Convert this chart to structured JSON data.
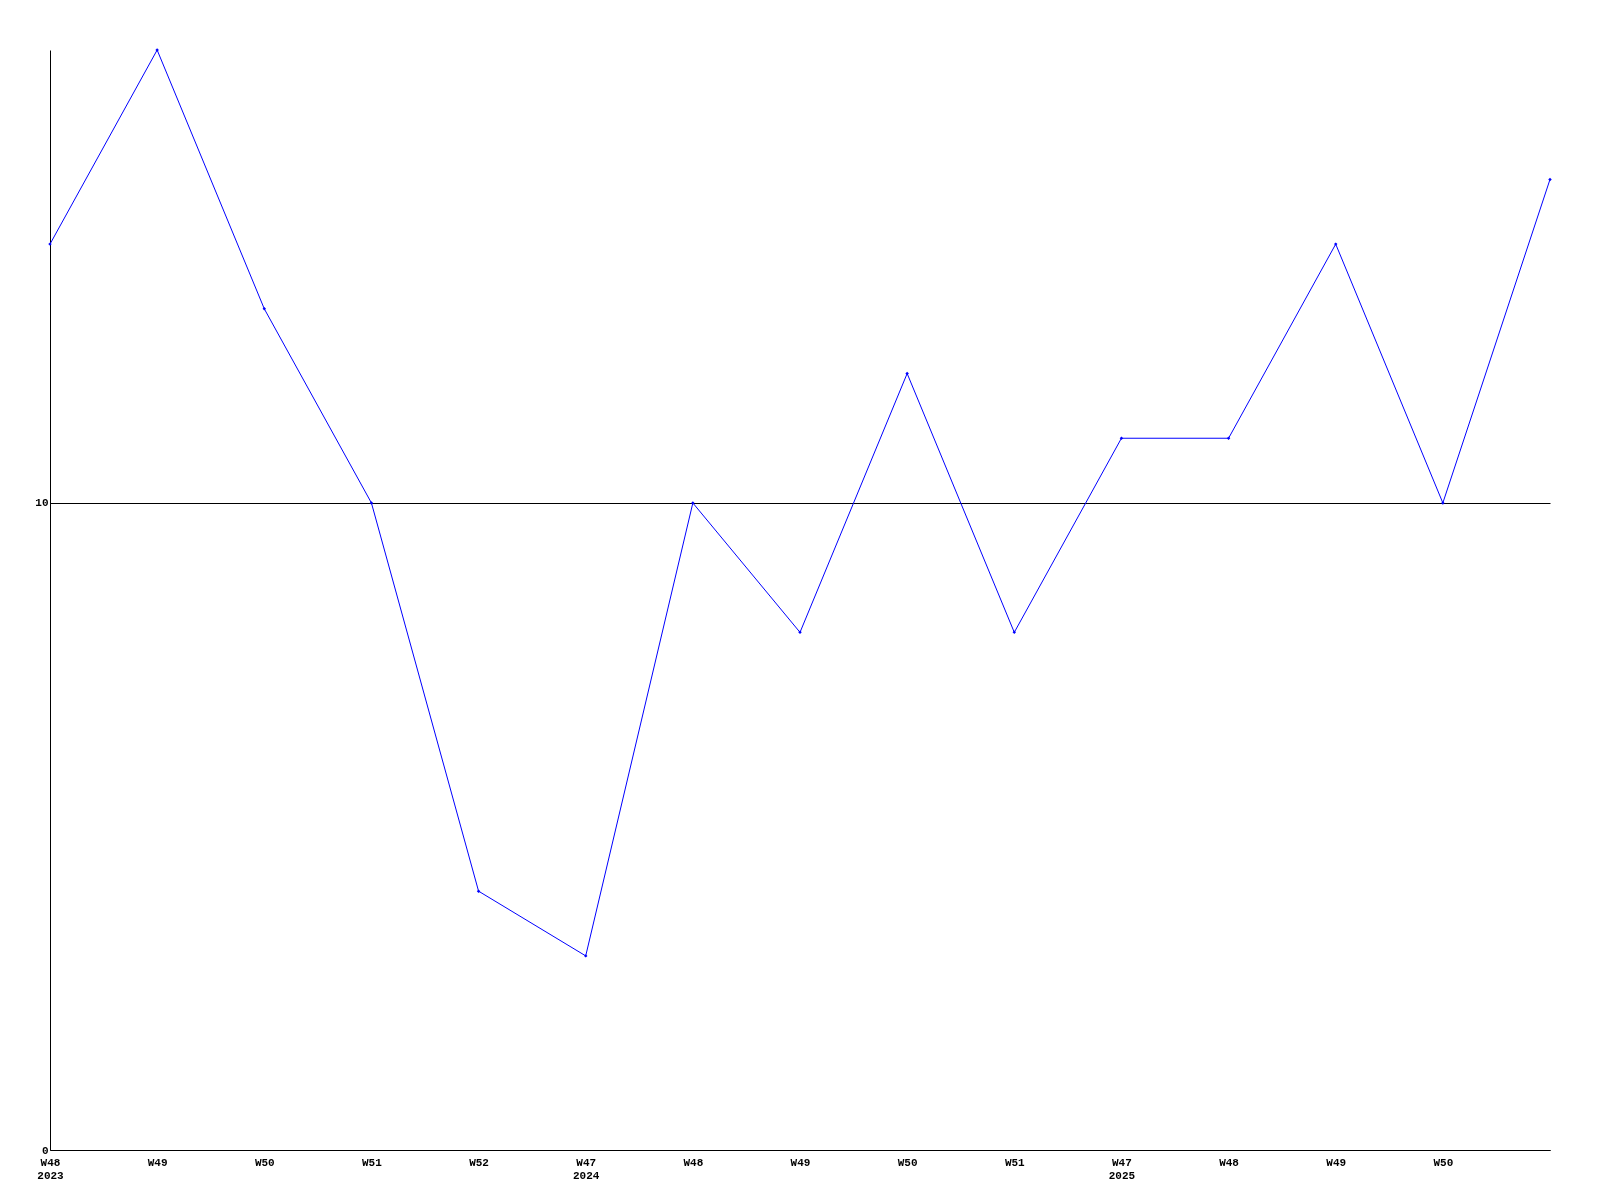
{
  "chart_data": {
    "type": "line",
    "categories": [
      "W48\n2023",
      "W49",
      "W50",
      "W51",
      "W52",
      "W47\n2024",
      "W48",
      "W49",
      "W50",
      "W51",
      "W47\n2025",
      "W48",
      "W49",
      "W50",
      null
    ],
    "series": [
      {
        "color": "#0000ff",
        "values": [
          14,
          17,
          13,
          10,
          4,
          3,
          10,
          8,
          12,
          8,
          11,
          11,
          14,
          10,
          15
        ]
      }
    ],
    "ylim": [
      0,
      17
    ],
    "yticks": [
      0,
      10
    ],
    "grid": "y",
    "marker": "diamond",
    "line_style": "solid",
    "legend": false
  }
}
